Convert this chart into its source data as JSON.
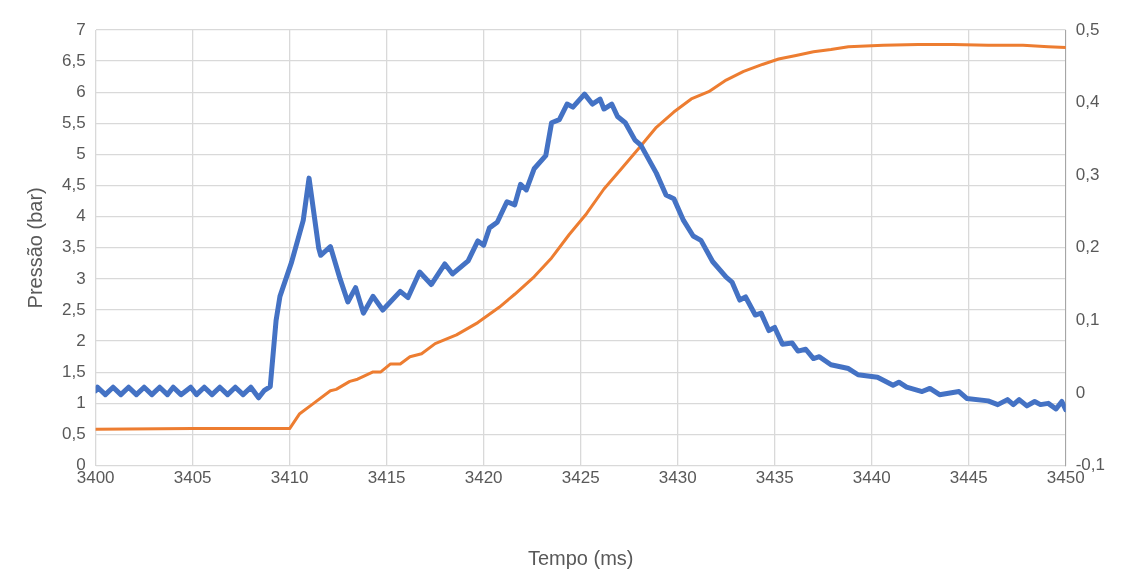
{
  "chart_data": {
    "type": "line",
    "xlabel": "Tempo (ms)",
    "ylabel": "Pressão (bar)",
    "xlim": [
      3400,
      3450
    ],
    "xticks": [
      3400,
      3405,
      3410,
      3415,
      3420,
      3425,
      3430,
      3435,
      3440,
      3445,
      3450
    ],
    "ylim": [
      0,
      7
    ],
    "yticks": [
      0,
      {
        "value": 0.5,
        "label": "0,5"
      },
      1,
      {
        "value": 1.5,
        "label": "1,5"
      },
      2,
      {
        "value": 2.5,
        "label": "2,5"
      },
      3,
      {
        "value": 3.5,
        "label": "3,5"
      },
      4,
      {
        "value": 4.5,
        "label": "4,5"
      },
      5,
      {
        "value": 5.5,
        "label": "5,5"
      },
      6,
      {
        "value": 6.5,
        "label": "6,5"
      },
      7
    ],
    "y2lim": [
      -0.1,
      0.5
    ],
    "y2ticks": [
      {
        "value": -0.1,
        "label": "-0,1"
      },
      0,
      {
        "value": 0.1,
        "label": "0,1"
      },
      {
        "value": 0.2,
        "label": "0,2"
      },
      {
        "value": 0.3,
        "label": "0,3"
      },
      {
        "value": 0.4,
        "label": "0,4"
      },
      {
        "value": 0.5,
        "label": "0,5"
      }
    ],
    "grid": true,
    "legend": false,
    "marker": "none",
    "line_style": "solid",
    "series": [
      {
        "color": "#4472c4",
        "x": [
          3400,
          3400.1,
          3400.5,
          3400.9,
          3401.3,
          3401.7,
          3402.1,
          3402.5,
          3402.9,
          3403.3,
          3403.7,
          3404,
          3404.4,
          3404.9,
          3405.2,
          3405.6,
          3406,
          3406.4,
          3406.8,
          3407.2,
          3407.6,
          3408,
          3408.4,
          3408.7,
          3409,
          3409.3,
          3409.5,
          3410.1,
          3410.7,
          3411,
          3411.5,
          3411.6,
          3412.1,
          3412.6,
          3413,
          3413.4,
          3413.8,
          3414.3,
          3414.8,
          3415.7,
          3416.1,
          3416.7,
          3417.3,
          3418,
          3418.4,
          3419.2,
          3419.7,
          3420,
          3420.3,
          3420.7,
          3421.2,
          3421.6,
          3421.9,
          3422.2,
          3422.6,
          3423.2,
          3423.5,
          3423.9,
          3424.3,
          3424.6,
          3425.2,
          3425.6,
          3426,
          3426.2,
          3426.6,
          3426.9,
          3427.3,
          3427.8,
          3428.1,
          3428.9,
          3429.4,
          3429.8,
          3430.3,
          3430.8,
          3431.2,
          3431.8,
          3432.5,
          3432.8,
          3433.2,
          3433.5,
          3434,
          3434.3,
          3434.7,
          3435,
          3435.4,
          3435.9,
          3436.2,
          3436.6,
          3437,
          3437.3,
          3437.9,
          3438.8,
          3439.3,
          3440.3,
          3441.1,
          3441.4,
          3441.8,
          3442.6,
          3443,
          3443.5,
          3444.5,
          3444.9,
          3446,
          3446.5,
          3447,
          3447.3,
          3447.6,
          3448,
          3448.4,
          3448.7,
          3449.1,
          3449.5,
          3449.8,
          3450
        ],
        "values": [
          1.2,
          1.26,
          1.14,
          1.26,
          1.14,
          1.26,
          1.14,
          1.26,
          1.14,
          1.26,
          1.14,
          1.26,
          1.14,
          1.26,
          1.14,
          1.26,
          1.14,
          1.26,
          1.14,
          1.26,
          1.14,
          1.26,
          1.09,
          1.21,
          1.27,
          2.33,
          2.72,
          3.27,
          3.94,
          4.62,
          3.49,
          3.38,
          3.52,
          3.0,
          2.63,
          2.86,
          2.45,
          2.72,
          2.5,
          2.8,
          2.7,
          3.11,
          2.91,
          3.24,
          3.08,
          3.29,
          3.61,
          3.54,
          3.82,
          3.91,
          4.24,
          4.19,
          4.52,
          4.43,
          4.77,
          4.98,
          5.51,
          5.56,
          5.81,
          5.76,
          5.97,
          5.81,
          5.89,
          5.73,
          5.81,
          5.61,
          5.51,
          5.23,
          5.15,
          4.7,
          4.35,
          4.29,
          3.94,
          3.69,
          3.62,
          3.28,
          3.03,
          2.95,
          2.66,
          2.71,
          2.42,
          2.45,
          2.17,
          2.22,
          1.95,
          1.97,
          1.84,
          1.87,
          1.72,
          1.75,
          1.62,
          1.56,
          1.46,
          1.42,
          1.29,
          1.34,
          1.26,
          1.19,
          1.24,
          1.14,
          1.19,
          1.08,
          1.04,
          0.98,
          1.06,
          0.98,
          1.06,
          0.96,
          1.03,
          0.98,
          1.0,
          0.91,
          1.03,
          0.9
        ]
      },
      {
        "color": "#ed7d31",
        "axis": "y2",
        "x": [
          3400,
          3405,
          3410,
          3410.5,
          3411.2,
          3412.1,
          3412.4,
          3413.1,
          3413.5,
          3414.3,
          3414.7,
          3415.2,
          3415.7,
          3416.2,
          3416.8,
          3417.5,
          3418.6,
          3419.7,
          3420.8,
          3421.6,
          3422.6,
          3423.5,
          3424.4,
          3425.3,
          3426.2,
          3427.1,
          3428,
          3428.9,
          3429.8,
          3430.7,
          3431.6,
          3432.5,
          3433.4,
          3434.3,
          3435.2,
          3436.1,
          3437,
          3437.9,
          3438.8,
          3440.6,
          3442.4,
          3444.2,
          3446,
          3447.8,
          3449.1,
          3450
        ],
        "values": [
          -0.05,
          -0.049,
          -0.049,
          -0.029,
          -0.015,
          0.003,
          0.005,
          0.016,
          0.019,
          0.029,
          0.029,
          0.04,
          0.04,
          0.05,
          0.054,
          0.068,
          0.08,
          0.097,
          0.118,
          0.136,
          0.16,
          0.186,
          0.218,
          0.247,
          0.281,
          0.309,
          0.337,
          0.366,
          0.387,
          0.405,
          0.415,
          0.431,
          0.443,
          0.452,
          0.46,
          0.465,
          0.47,
          0.473,
          0.477,
          0.479,
          0.48,
          0.48,
          0.479,
          0.479,
          0.477,
          0.476
        ]
      }
    ]
  }
}
